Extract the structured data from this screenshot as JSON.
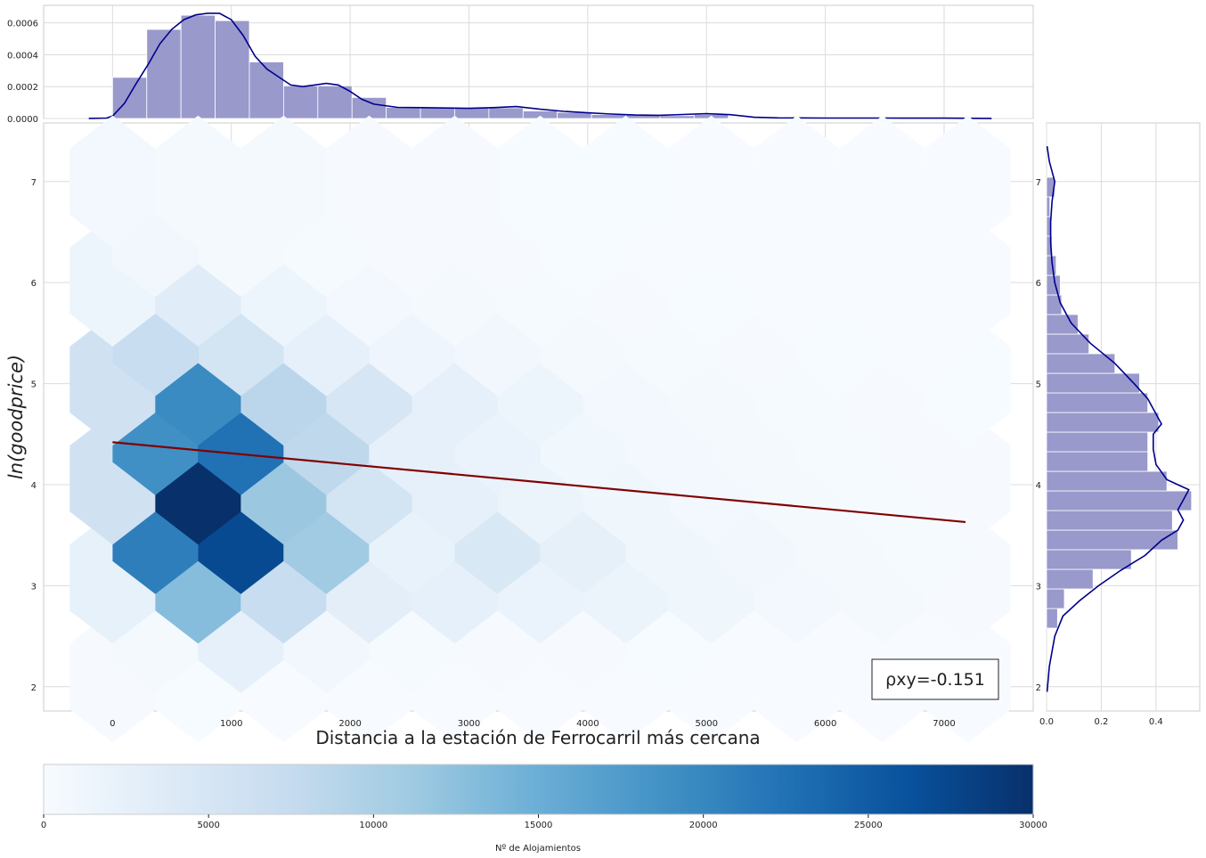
{
  "chart_data": [
    {
      "id": "top_marginal",
      "type": "bar",
      "subtype": "histogram_with_kde",
      "bar_color": "#9999cc",
      "kde_color": "#00008b",
      "xlim": [
        -580,
        7750
      ],
      "ylim": [
        0,
        0.00071
      ],
      "x_ticks": [
        0,
        1000,
        2000,
        3000,
        4000,
        5000,
        6000,
        7000
      ],
      "x_tick_labels": [
        "0",
        "1000",
        "2000",
        "3000",
        "4000",
        "5000",
        "6000",
        "7000"
      ],
      "y_ticks": [
        0,
        0.0002,
        0.0004,
        0.0006
      ],
      "y_tick_labels": [
        "0.0000",
        "0.0002",
        "0.0004",
        "0.0006"
      ],
      "bin_width": 288,
      "bin_starts": [
        0,
        288,
        576,
        864,
        1152,
        1440,
        1728,
        2016,
        2304,
        2592,
        2880,
        3168,
        3456,
        3744,
        4032,
        4320,
        4608,
        4896,
        5184,
        5472,
        5760,
        6048,
        6336,
        6624,
        6912
      ],
      "values": [
        0.000258,
        0.000559,
        0.000648,
        0.000614,
        0.000355,
        0.000205,
        0.000205,
        0.000132,
        7e-05,
        6.7e-05,
        6.7e-05,
        6.7e-05,
        4.7e-05,
        3.8e-05,
        2.5e-05,
        2.4e-05,
        1.8e-05,
        2.5e-05,
        5e-06,
        4e-06,
        3e-06,
        3e-06,
        3e-06,
        3e-06,
        3e-06
      ],
      "kde_x": [
        -200,
        -50,
        0,
        100,
        200,
        300,
        400,
        500,
        600,
        700,
        800,
        900,
        1000,
        1100,
        1200,
        1300,
        1400,
        1500,
        1600,
        1700,
        1800,
        1900,
        2000,
        2100,
        2200,
        2400,
        2600,
        2800,
        3000,
        3200,
        3400,
        3600,
        3800,
        4000,
        4200,
        4400,
        4600,
        4800,
        5000,
        5200,
        5400,
        5600,
        6000,
        6500,
        7000,
        7400
      ],
      "kde_y": [
        5e-07,
        3e-06,
        1.5e-05,
        9.5e-05,
        0.00022,
        0.00034,
        0.00047,
        0.00056,
        0.00062,
        0.00065,
        0.00066,
        0.00066,
        0.00062,
        0.00052,
        0.00039,
        0.00031,
        0.00026,
        0.00021,
        0.0002,
        0.00021,
        0.00022,
        0.00021,
        0.00017,
        0.00012,
        9e-05,
        7e-05,
        6.8e-05,
        6.6e-05,
        6.4e-05,
        6.8e-05,
        7.5e-05,
        5.8e-05,
        4.5e-05,
        3.6e-05,
        2.8e-05,
        2.2e-05,
        2e-05,
        2.5e-05,
        3e-05,
        2.4e-05,
        8e-06,
        4e-06,
        3e-06,
        3e-06,
        2e-06,
        5e-07
      ]
    },
    {
      "id": "main_hexbin",
      "type": "heatmap",
      "subtype": "hexbin",
      "colormap": "Blues",
      "xlabel": "Distancia a la estación de Ferrocarril más cercana",
      "ylabel": "ln(goodprice)",
      "xlim": [
        -580,
        7750
      ],
      "ylim": [
        1.76,
        7.58
      ],
      "x_ticks": [
        0,
        1000,
        2000,
        3000,
        4000,
        5000,
        6000,
        7000
      ],
      "x_tick_labels": [
        "0",
        "1000",
        "2000",
        "3000",
        "4000",
        "5000",
        "6000",
        "7000"
      ],
      "y_ticks": [
        2,
        3,
        4,
        5,
        6,
        7
      ],
      "y_tick_labels": [
        "2",
        "3",
        "4",
        "5",
        "6",
        "7"
      ],
      "hex_x_spacing": 720,
      "hex_y_spacing": 0.98,
      "hex_row_offset_x": 0,
      "hex_row_offset_y": 2.1,
      "hex_rows": [
        {
          "y": 2.1,
          "x_start": 0,
          "counts": [
            150,
            100,
            60,
            40,
            30,
            20,
            15,
            10,
            8,
            6,
            5
          ]
        },
        {
          "y": 2.59,
          "x_start": 360,
          "counts": [
            400,
            2500,
            900,
            300,
            200,
            120,
            80,
            50,
            30,
            15
          ]
        },
        {
          "y": 3.08,
          "x_start": 0,
          "counts": [
            2400,
            13000,
            7000,
            3000,
            2500,
            2000,
            1700,
            1200,
            800,
            400,
            200
          ]
        },
        {
          "y": 3.57,
          "x_start": 360,
          "counts": [
            21000,
            27000,
            11000,
            2200,
            4500,
            2600,
            1200,
            900,
            500,
            300
          ]
        },
        {
          "y": 4.06,
          "x_start": 0,
          "counts": [
            6000,
            30000,
            11500,
            5500,
            2500,
            1800,
            1200,
            800,
            500,
            300,
            150
          ]
        },
        {
          "y": 4.55,
          "x_start": 360,
          "counts": [
            19000,
            22500,
            8200,
            2500,
            2000,
            1000,
            800,
            500,
            300,
            150
          ]
        },
        {
          "y": 5.04,
          "x_start": 0,
          "counts": [
            6000,
            19500,
            8500,
            5000,
            2500,
            1500,
            800,
            500,
            300,
            150,
            80
          ]
        },
        {
          "y": 5.53,
          "x_start": 360,
          "counts": [
            7000,
            5500,
            2500,
            1300,
            900,
            500,
            300,
            200,
            100,
            50
          ]
        },
        {
          "y": 6.02,
          "x_start": 0,
          "counts": [
            1500,
            3500,
            1500,
            800,
            500,
            300,
            200,
            100,
            60,
            40,
            20
          ]
        },
        {
          "y": 6.51,
          "x_start": 360,
          "counts": [
            900,
            500,
            300,
            200,
            150,
            100,
            60,
            40,
            20,
            10
          ]
        },
        {
          "y": 7.0,
          "x_start": 0,
          "counts": [
            800,
            400,
            400,
            200,
            150,
            100,
            80,
            60,
            40,
            20,
            10
          ]
        }
      ],
      "regression_line": {
        "color": "#800000",
        "x": [
          0,
          7180
        ],
        "y": [
          4.42,
          3.63
        ]
      },
      "annotation": "ρxy=-0.151"
    },
    {
      "id": "right_marginal",
      "type": "bar",
      "subtype": "horizontal_histogram_with_kde",
      "bar_color": "#9999cc",
      "kde_color": "#00008b",
      "xlim": [
        0,
        0.56
      ],
      "ylim": [
        1.76,
        7.58
      ],
      "x_ticks": [
        0,
        0.2,
        0.4
      ],
      "x_tick_labels": [
        "0.0",
        "0.2",
        "0.4"
      ],
      "y_ticks": [
        2,
        3,
        4,
        5,
        6,
        7
      ],
      "y_tick_labels": [
        "2",
        "3",
        "4",
        "5",
        "6",
        "7"
      ],
      "bin_height": 0.194,
      "bin_starts": [
        2.58,
        2.774,
        2.968,
        3.162,
        3.356,
        3.55,
        3.744,
        3.938,
        4.132,
        4.326,
        4.52,
        4.714,
        4.908,
        5.102,
        5.296,
        5.49,
        5.684,
        5.878,
        6.072,
        6.266,
        6.46,
        6.654,
        6.848
      ],
      "values": [
        0.04,
        0.065,
        0.17,
        0.31,
        0.48,
        0.46,
        0.53,
        0.44,
        0.37,
        0.37,
        0.41,
        0.37,
        0.34,
        0.25,
        0.155,
        0.115,
        0.055,
        0.05,
        0.035,
        0.02,
        0.015,
        0.012,
        0.03
      ],
      "kde_y": [
        1.95,
        2.2,
        2.5,
        2.7,
        2.85,
        3.0,
        3.15,
        3.3,
        3.45,
        3.55,
        3.65,
        3.75,
        3.85,
        3.95,
        4.05,
        4.2,
        4.35,
        4.5,
        4.6,
        4.7,
        4.85,
        5.0,
        5.2,
        5.4,
        5.6,
        5.8,
        6.0,
        6.2,
        6.4,
        6.6,
        6.8,
        7.0,
        7.2,
        7.35
      ],
      "kde_x": [
        0.002,
        0.01,
        0.03,
        0.06,
        0.12,
        0.19,
        0.27,
        0.36,
        0.42,
        0.48,
        0.5,
        0.48,
        0.5,
        0.52,
        0.44,
        0.4,
        0.39,
        0.39,
        0.42,
        0.4,
        0.37,
        0.32,
        0.25,
        0.16,
        0.09,
        0.05,
        0.03,
        0.02,
        0.015,
        0.015,
        0.02,
        0.03,
        0.01,
        0.002
      ]
    },
    {
      "id": "colorbar",
      "type": "colorbar",
      "colormap": "Blues",
      "label": "Nº de Alojamientos",
      "range": [
        0,
        30000
      ],
      "ticks": [
        0,
        5000,
        10000,
        15000,
        20000,
        25000,
        30000
      ],
      "tick_labels": [
        "0",
        "5000",
        "10000",
        "15000",
        "20000",
        "25000",
        "30000"
      ]
    }
  ]
}
